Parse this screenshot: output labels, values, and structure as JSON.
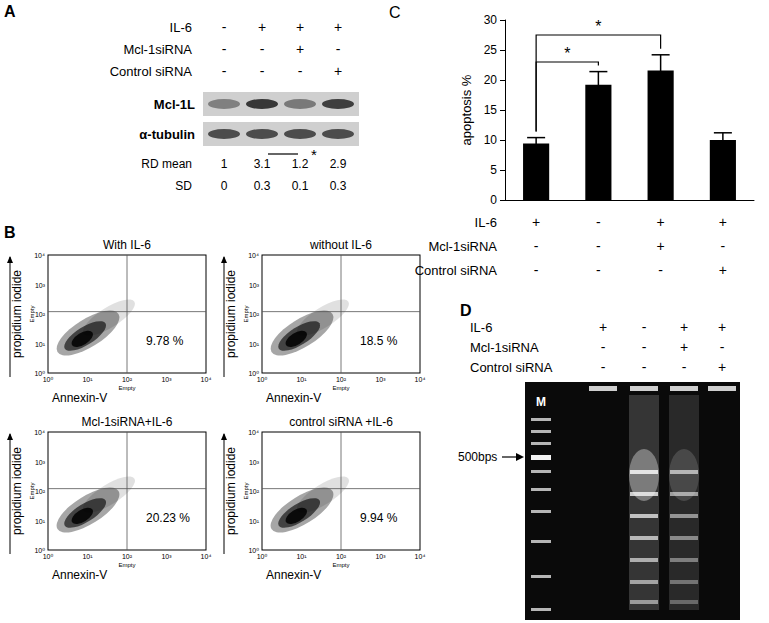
{
  "panel_a": {
    "letter": "A",
    "conditions": [
      {
        "name": "IL-6",
        "signs": [
          "-",
          "+",
          "+",
          "+"
        ]
      },
      {
        "name": "Mcl-1siRNA",
        "signs": [
          "-",
          "-",
          "+",
          "-"
        ]
      },
      {
        "name": "Control siRNA",
        "signs": [
          "-",
          "-",
          "-",
          "+"
        ]
      }
    ],
    "blots": [
      "Mcl-1L",
      "α-tubulin"
    ],
    "rd_mean": {
      "label": "RD mean",
      "values": [
        1,
        3.1,
        1.2,
        2.9
      ],
      "significance": {
        "from": 1,
        "to": 2,
        "label": "*"
      }
    },
    "sd": {
      "label": "SD",
      "values": [
        0,
        0.3,
        0.1,
        0.3
      ]
    }
  },
  "panel_b": {
    "letter": "B",
    "x_label": "Annexin-V",
    "y_label": "propidium iodide",
    "channel_label": "Empty",
    "ticks": [
      "10⁰",
      "10¹",
      "10²",
      "10³",
      "10⁴"
    ],
    "plots": [
      {
        "title": "With IL-6",
        "percent": "9.78 %"
      },
      {
        "title": "without IL-6",
        "percent": "18.5 %"
      },
      {
        "title": "Mcl-1siRNA+IL-6",
        "percent": "20.23 %"
      },
      {
        "title": "control siRNA +IL-6",
        "percent": "9.94 %"
      }
    ]
  },
  "chart_data": {
    "type": "bar",
    "panel_label": "C",
    "y_label": "apoptosis %",
    "categories": [
      null,
      null,
      null,
      null
    ],
    "values": [
      9.4,
      19.2,
      21.6,
      10.0
    ],
    "errors": [
      1.0,
      2.2,
      2.6,
      1.2
    ],
    "color": "#000000",
    "ylim": [
      0,
      30
    ],
    "yticks": [
      0,
      5,
      10,
      15,
      20,
      25,
      30
    ],
    "grid": false,
    "conditions": [
      {
        "name": "IL-6",
        "signs": [
          "+",
          "-",
          "+",
          "+"
        ]
      },
      {
        "name": "Mcl-1siRNA",
        "signs": [
          "-",
          "-",
          "+",
          "-"
        ]
      },
      {
        "name": "Control siRNA",
        "signs": [
          "-",
          "-",
          "-",
          "+"
        ]
      }
    ],
    "significance": [
      {
        "from": 0,
        "to": 1,
        "label": "*",
        "y": 23
      },
      {
        "from": 0,
        "to": 2,
        "label": "*",
        "y": 27.5
      }
    ]
  },
  "panel_d": {
    "letter": "D",
    "conditions": [
      {
        "name": "IL-6",
        "signs": [
          "+",
          "-",
          "+",
          "+"
        ]
      },
      {
        "name": "Mcl-1siRNA",
        "signs": [
          "-",
          "-",
          "+",
          "-"
        ]
      },
      {
        "name": "Control siRNA",
        "signs": [
          "-",
          "-",
          "-",
          "+"
        ]
      }
    ],
    "marker_lane": "M",
    "size_label": "500bps"
  }
}
